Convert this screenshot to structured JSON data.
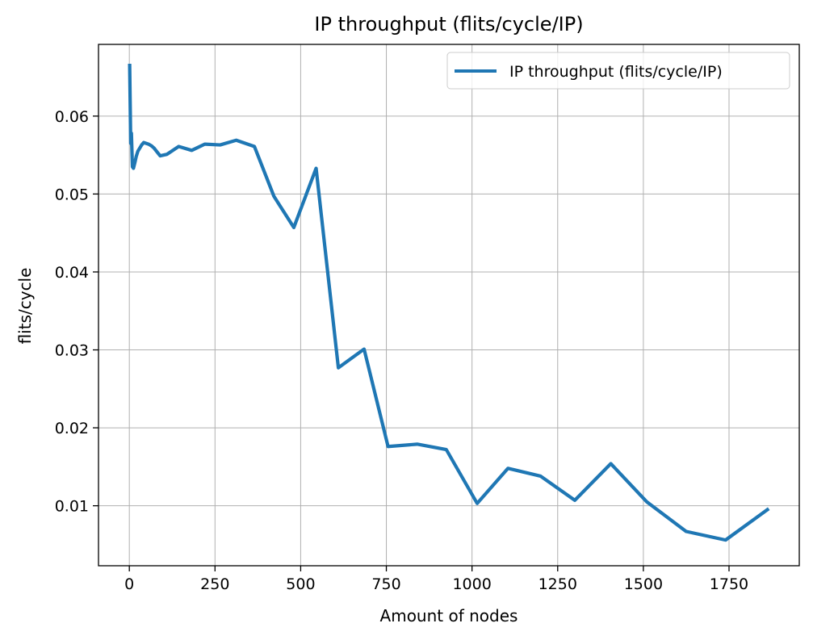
{
  "chart_data": {
    "type": "line",
    "title": "IP throughput (flits/cycle/IP)",
    "xlabel": "Amount of nodes",
    "ylabel": "flits/cycle",
    "xlim": [
      -90,
      1955
    ],
    "ylim": [
      0.0023,
      0.0692
    ],
    "xticks": [
      0,
      250,
      500,
      750,
      1000,
      1250,
      1500,
      1750
    ],
    "yticks": [
      0.01,
      0.02,
      0.03,
      0.04,
      0.05,
      0.06
    ],
    "xtick_labels": [
      "0",
      "250",
      "500",
      "750",
      "1000",
      "1250",
      "1500",
      "1750"
    ],
    "ytick_labels": [
      "0.01",
      "0.02",
      "0.03",
      "0.04",
      "0.05",
      "0.06"
    ],
    "grid": true,
    "legend_position": "top-right",
    "series": [
      {
        "name": "IP throughput (flits/cycle/IP)",
        "color": "#1f77b4",
        "x": [
          1,
          4,
          6,
          9,
          12,
          16,
          20,
          25,
          36,
          42,
          56,
          64,
          72,
          81,
          90,
          110,
          144,
          182,
          220,
          265,
          312,
          365,
          422,
          480,
          545,
          610,
          685,
          755,
          840,
          925,
          1015,
          1105,
          1200,
          1300,
          1405,
          1510,
          1625,
          1740,
          1862
        ],
        "y": [
          0.0665,
          0.0565,
          0.0578,
          0.0535,
          0.0533,
          0.054,
          0.0548,
          0.0555,
          0.0563,
          0.0566,
          0.0564,
          0.0562,
          0.0559,
          0.0554,
          0.0549,
          0.0551,
          0.0561,
          0.0556,
          0.0564,
          0.0563,
          0.0569,
          0.0561,
          0.0497,
          0.0457,
          0.0533,
          0.0277,
          0.0301,
          0.0176,
          0.0179,
          0.0172,
          0.0103,
          0.0148,
          0.0138,
          0.0107,
          0.0154,
          0.0105,
          0.0067,
          0.0056,
          0.0095
        ]
      }
    ]
  }
}
